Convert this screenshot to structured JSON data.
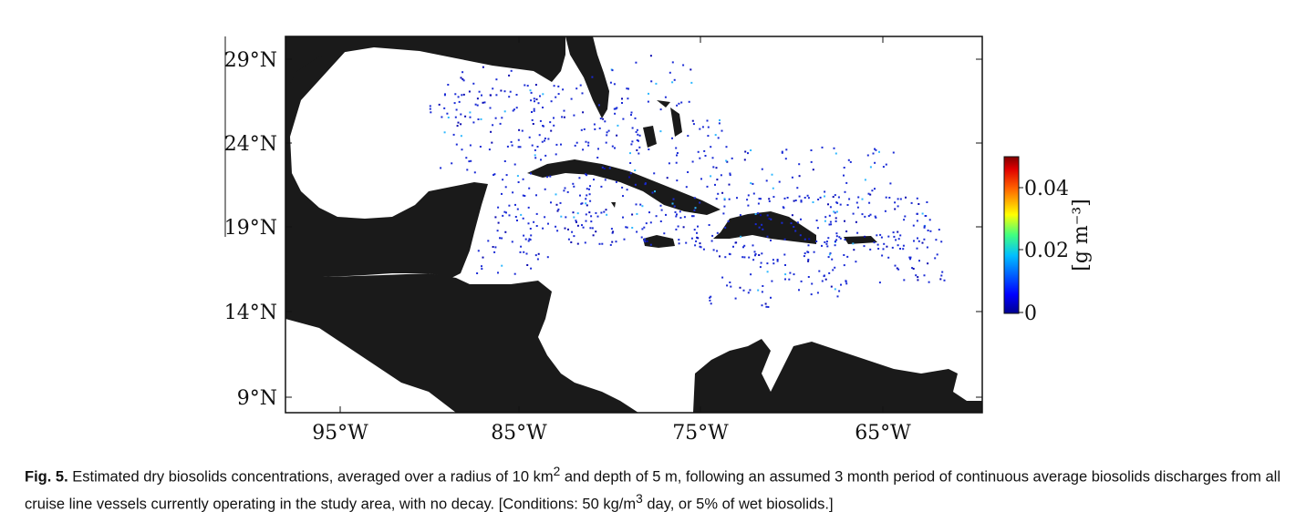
{
  "map": {
    "lat_labels": [
      "29°N",
      "24°N",
      "19°N",
      "14°N",
      "9°N"
    ],
    "lon_labels": [
      "95°W",
      "85°W",
      "75°W",
      "65°W"
    ],
    "colorbar": {
      "tick_labels": [
        "0.04",
        "0.02",
        "0"
      ],
      "unit_label": "[g m⁻³]",
      "colors": [
        "#00008f",
        "#0000ff",
        "#00bfff",
        "#40ff80",
        "#ffff00",
        "#ff8000",
        "#ff0000",
        "#800000"
      ]
    },
    "land_color": "#1a1a1a",
    "ocean_color": "#ffffff",
    "particle_color": "#1a2bd6"
  },
  "caption": {
    "label": "Fig. 5.",
    "text_part1": " Estimated dry biosolids concentrations, averaged over a radius of 10 km",
    "sup1": "2",
    "text_part2": " and depth of 5 m, following an assumed 3 month period of continuous average biosolids discharges from all cruise line vessels currently operating in the study area, with no decay. [Conditions: 50 kg/m",
    "sup2": "3",
    "text_part3": " day, or 5% of wet biosolids.]"
  }
}
